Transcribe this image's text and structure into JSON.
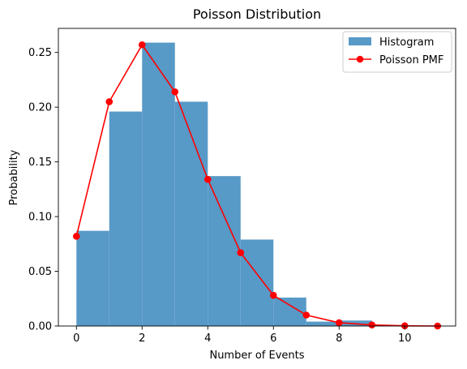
{
  "chart_data": {
    "type": "bar",
    "title": "Poisson Distribution",
    "xlabel": "Number of Events",
    "ylabel": "Probability",
    "xlim": [
      -0.55,
      11.55
    ],
    "ylim": [
      0,
      0.272
    ],
    "xticks": [
      0,
      2,
      4,
      6,
      8,
      10
    ],
    "yticks": [
      0.0,
      0.05,
      0.1,
      0.15,
      0.2,
      0.25
    ],
    "ytick_labels": [
      "0.00",
      "0.05",
      "0.10",
      "0.15",
      "0.20",
      "0.25"
    ],
    "grid": false,
    "legend_position": "top-right",
    "series": [
      {
        "name": "Histogram",
        "kind": "histogram",
        "color": "#5799c7",
        "bins": [
          {
            "x0": 0,
            "x1": 1,
            "value": 0.087
          },
          {
            "x0": 1,
            "x1": 2,
            "value": 0.196
          },
          {
            "x0": 2,
            "x1": 3,
            "value": 0.259
          },
          {
            "x0": 3,
            "x1": 4,
            "value": 0.205
          },
          {
            "x0": 4,
            "x1": 5,
            "value": 0.137
          },
          {
            "x0": 5,
            "x1": 6,
            "value": 0.079
          },
          {
            "x0": 6,
            "x1": 7,
            "value": 0.026
          },
          {
            "x0": 7,
            "x1": 8,
            "value": 0.004
          },
          {
            "x0": 8,
            "x1": 9,
            "value": 0.005
          },
          {
            "x0": 9,
            "x1": 10,
            "value": 0.0005
          }
        ]
      },
      {
        "name": "Poisson PMF",
        "kind": "line",
        "color": "#ff0000",
        "x": [
          0,
          1,
          2,
          3,
          4,
          5,
          6,
          7,
          8,
          9,
          10,
          11
        ],
        "values": [
          0.082,
          0.205,
          0.257,
          0.214,
          0.134,
          0.067,
          0.028,
          0.01,
          0.003,
          0.001,
          0.0002,
          0.0
        ]
      }
    ]
  }
}
